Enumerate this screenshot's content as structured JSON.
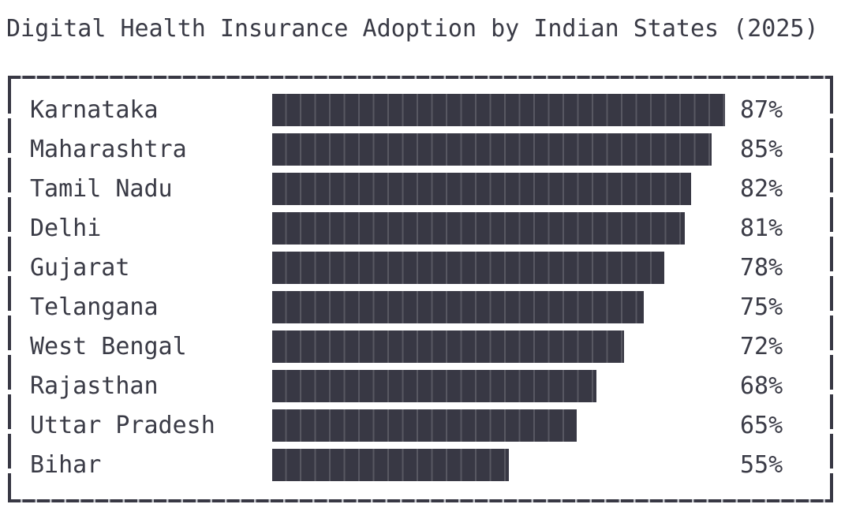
{
  "title": "Digital Health Insurance Adoption by Indian States (2025)",
  "colors": {
    "bar": "#383844",
    "frame": "#383844",
    "text": "#3a3b46",
    "background": "#ffffff",
    "frame_gap": "#c4c6cc"
  },
  "chart_data": {
    "type": "bar",
    "orientation": "horizontal",
    "title": "Digital Health Insurance Adoption by Indian States (2025)",
    "categories": [
      "Karnataka",
      "Maharashtra",
      "Tamil Nadu",
      "Delhi",
      "Gujarat",
      "Telangana",
      "West Bengal",
      "Rajasthan",
      "Uttar Pradesh",
      "Bihar"
    ],
    "values": [
      87,
      85,
      82,
      81,
      78,
      75,
      72,
      68,
      65,
      55
    ],
    "value_labels": [
      "87%",
      "85%",
      "82%",
      "81%",
      "78%",
      "75%",
      "72%",
      "68%",
      "65%",
      "55%"
    ],
    "unit": "%",
    "xlabel": "",
    "ylabel": "",
    "xlim": [
      20,
      90
    ],
    "grid": false,
    "legend": false,
    "bar_value_labels_position": "right"
  }
}
